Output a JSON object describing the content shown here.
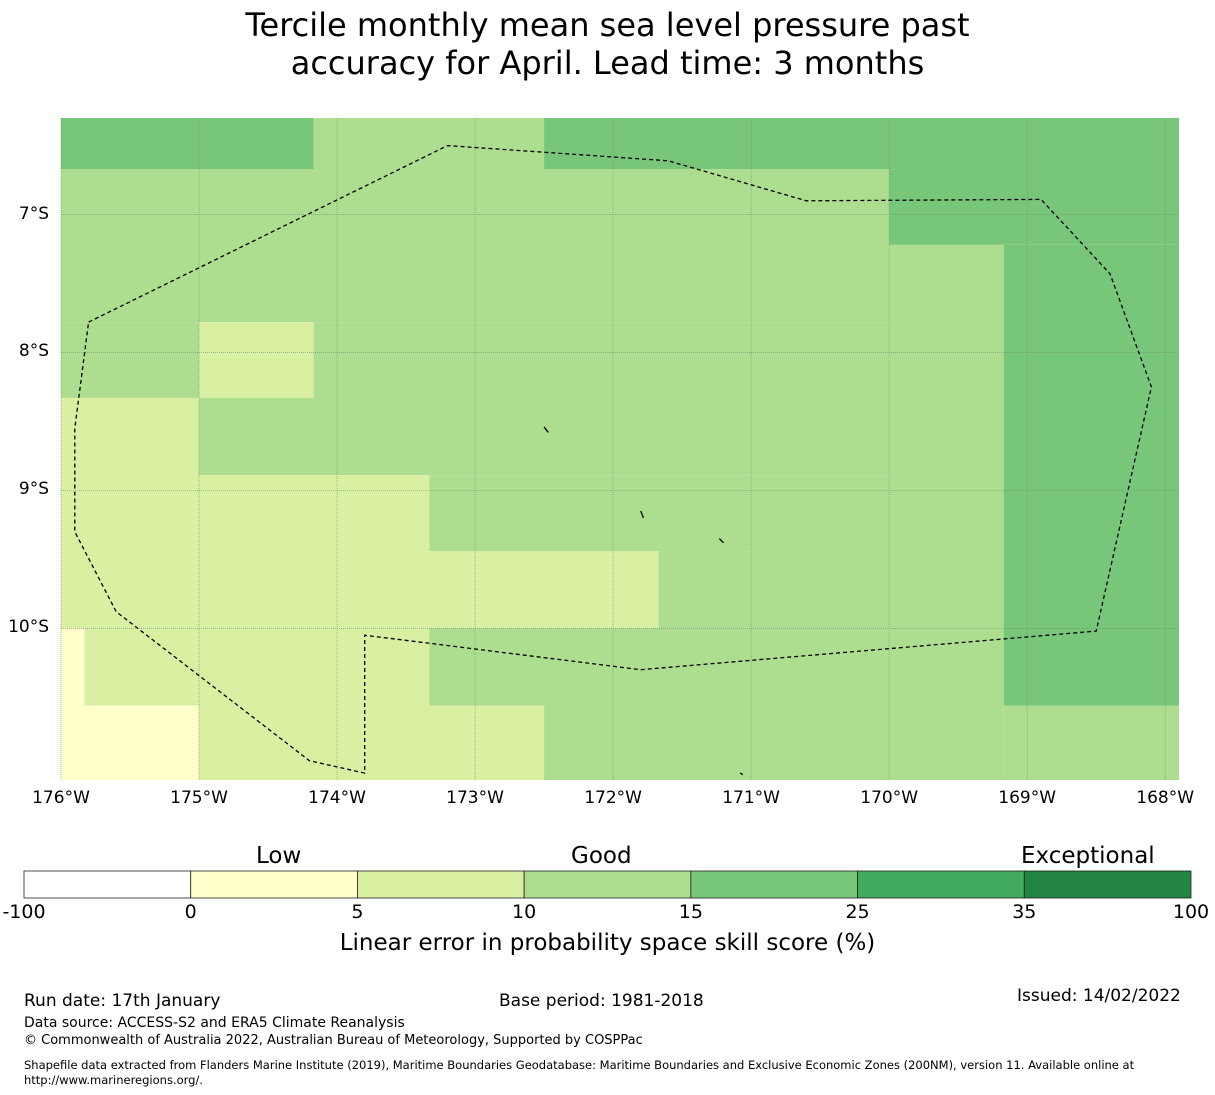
{
  "title": {
    "line1": "Tercile monthly mean sea level pressure past",
    "line2": "accuracy for April. Lead time: 3 months"
  },
  "map": {
    "lon_range": [
      -176,
      -167.9
    ],
    "lat_range": [
      -6.3,
      -11.1
    ],
    "y_ticks": [
      {
        "lat": -7,
        "label": "7°S"
      },
      {
        "lat": -8,
        "label": "8°S"
      },
      {
        "lat": -9,
        "label": "9°S"
      },
      {
        "lat": -10,
        "label": "10°S"
      }
    ],
    "x_ticks": [
      {
        "lon": -176,
        "label": "176°W"
      },
      {
        "lon": -175,
        "label": "175°W"
      },
      {
        "lon": -174,
        "label": "174°W"
      },
      {
        "lon": -173,
        "label": "173°W"
      },
      {
        "lon": -172,
        "label": "172°W"
      },
      {
        "lon": -171,
        "label": "171°W"
      },
      {
        "lon": -170,
        "label": "170°W"
      },
      {
        "lon": -169,
        "label": "169°W"
      },
      {
        "lon": -168,
        "label": "168°W"
      }
    ],
    "cells": [
      {
        "lon0": -176,
        "lon1": -174.17,
        "lat0": -6.3,
        "lat1": -6.67,
        "bin": "15-25"
      },
      {
        "lon0": -174.17,
        "lon1": -172.5,
        "lat0": -6.3,
        "lat1": -6.67,
        "bin": "10-15"
      },
      {
        "lon0": -172.5,
        "lon1": -167.9,
        "lat0": -6.3,
        "lat1": -6.67,
        "bin": "15-25"
      },
      {
        "lon0": -176,
        "lon1": -170,
        "lat0": -6.67,
        "lat1": -7.78,
        "bin": "10-15"
      },
      {
        "lon0": -170,
        "lon1": -167.9,
        "lat0": -6.67,
        "lat1": -7.22,
        "bin": "15-25"
      },
      {
        "lon0": -170,
        "lon1": -169.17,
        "lat0": -7.22,
        "lat1": -11.1,
        "bin": "10-15"
      },
      {
        "lon0": -169.17,
        "lon1": -167.9,
        "lat0": -7.22,
        "lat1": -10.56,
        "bin": "15-25"
      },
      {
        "lon0": -169.17,
        "lon1": -167.9,
        "lat0": -10.56,
        "lat1": -11.1,
        "bin": "10-15"
      },
      {
        "lon0": -176,
        "lon1": -175,
        "lat0": -7.78,
        "lat1": -8.33,
        "bin": "10-15"
      },
      {
        "lon0": -175,
        "lon1": -174.17,
        "lat0": -7.78,
        "lat1": -8.33,
        "bin": "5-10"
      },
      {
        "lon0": -174.17,
        "lon1": -170,
        "lat0": -7.78,
        "lat1": -8.33,
        "bin": "10-15"
      },
      {
        "lon0": -176,
        "lon1": -175,
        "lat0": -8.33,
        "lat1": -10,
        "bin": "5-10"
      },
      {
        "lon0": -175,
        "lon1": -170,
        "lat0": -8.33,
        "lat1": -8.89,
        "bin": "10-15"
      },
      {
        "lon0": -175,
        "lon1": -173.33,
        "lat0": -8.89,
        "lat1": -10,
        "bin": "5-10"
      },
      {
        "lon0": -173.33,
        "lon1": -170,
        "lat0": -8.89,
        "lat1": -9.44,
        "bin": "10-15"
      },
      {
        "lon0": -173.33,
        "lon1": -171.67,
        "lat0": -9.44,
        "lat1": -10,
        "bin": "5-10"
      },
      {
        "lon0": -171.67,
        "lon1": -170,
        "lat0": -9.44,
        "lat1": -10,
        "bin": "10-15"
      },
      {
        "lon0": -176,
        "lon1": -175.83,
        "lat0": -10,
        "lat1": -11.1,
        "bin": "0-5"
      },
      {
        "lon0": -175.83,
        "lon1": -175,
        "lat0": -10,
        "lat1": -10.56,
        "bin": "5-10"
      },
      {
        "lon0": -175.83,
        "lon1": -175,
        "lat0": -10.56,
        "lat1": -11.1,
        "bin": "0-5"
      },
      {
        "lon0": -175,
        "lon1": -173.33,
        "lat0": -10,
        "lat1": -11.1,
        "bin": "5-10"
      },
      {
        "lon0": -173.33,
        "lon1": -172.5,
        "lat0": -10,
        "lat1": -10.56,
        "bin": "10-15"
      },
      {
        "lon0": -173.33,
        "lon1": -172.5,
        "lat0": -10.56,
        "lat1": -11.1,
        "bin": "5-10"
      },
      {
        "lon0": -172.5,
        "lon1": -170,
        "lat0": -10,
        "lat1": -11.1,
        "bin": "10-15"
      }
    ],
    "eez_boundary": [
      [
        -175.8,
        -7.78
      ],
      [
        -173.2,
        -6.5
      ],
      [
        -171.6,
        -6.61
      ],
      [
        -170.6,
        -6.9
      ],
      [
        -168.9,
        -6.89
      ],
      [
        -168.4,
        -7.43
      ],
      [
        -168.1,
        -8.25
      ],
      [
        -168.5,
        -10.02
      ],
      [
        -171.8,
        -10.3
      ],
      [
        -173.8,
        -10.05
      ],
      [
        -173.8,
        -11.05
      ],
      [
        -174.2,
        -10.96
      ],
      [
        -175.6,
        -9.88
      ],
      [
        -175.9,
        -9.3
      ],
      [
        -175.9,
        -8.55
      ],
      [
        -175.8,
        -7.78
      ]
    ],
    "islands": [
      [
        [
          -172.5,
          -8.54
        ],
        [
          -172.47,
          -8.58
        ]
      ],
      [
        [
          -171.8,
          -9.15
        ],
        [
          -171.78,
          -9.2
        ]
      ],
      [
        [
          -171.23,
          -9.35
        ],
        [
          -171.2,
          -9.38
        ]
      ],
      [
        [
          -171.08,
          -11.05
        ],
        [
          -171.06,
          -11.06
        ]
      ]
    ]
  },
  "colorbar": {
    "categories": [
      {
        "label": "Low"
      },
      {
        "label": "Good"
      },
      {
        "label": "Exceptional"
      }
    ],
    "bins": [
      {
        "range": "-100-0",
        "color": "#ffffff"
      },
      {
        "range": "0-5",
        "color": "#ffffcc"
      },
      {
        "range": "5-10",
        "color": "#d9f0a3"
      },
      {
        "range": "10-15",
        "color": "#addd8e"
      },
      {
        "range": "15-25",
        "color": "#78c679"
      },
      {
        "range": "25-35",
        "color": "#41ab5d"
      },
      {
        "range": "35-100",
        "color": "#238443"
      }
    ],
    "ticks": [
      "-100",
      "0",
      "5",
      "10",
      "15",
      "25",
      "35",
      "100"
    ],
    "label": "Linear error in probability space skill score (%)"
  },
  "footer": {
    "run_date": "Run date: 17th January",
    "base_period": "Base period: 1981-2018",
    "issued": "Issued: 14/02/2022",
    "data_source": "Data source: ACCESS-S2 and ERA5 Climate Reanalysis",
    "copyright": "© Commonwealth of Australia 2022, Australian Bureau of Meteorology, Supported by COSPPac",
    "shapefile_line1": "Shapefile data extracted from Flanders Marine Institute (2019), Maritime Boundaries Geodatabase: Maritime Boundaries and Exclusive Economic Zones (200NM), version 11. Available online at",
    "shapefile_line2": "http://www.marineregions.org/."
  }
}
